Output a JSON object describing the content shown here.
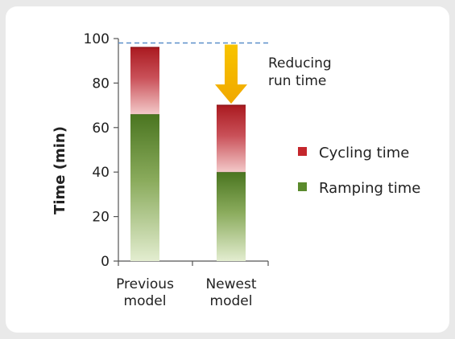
{
  "chart_data": {
    "type": "bar",
    "stacked": true,
    "ylabel": "Time (min)",
    "ylim": [
      0,
      100
    ],
    "yticks": [
      0,
      20,
      40,
      60,
      80,
      100
    ],
    "categories": [
      "Previous model",
      "Newest model"
    ],
    "category_lines": [
      [
        "Previous",
        "model"
      ],
      [
        "Newest",
        "model"
      ]
    ],
    "series": [
      {
        "name": "Ramping time",
        "values": [
          66,
          40
        ],
        "color": "#4e7a23"
      },
      {
        "name": "Cycling time",
        "values": [
          30,
          30
        ],
        "color": "#b01c22"
      }
    ],
    "reference_line": {
      "value": 98,
      "style": "dashed",
      "color": "#5b8fc9"
    },
    "annotation": {
      "lines": [
        "Reducing",
        "run time"
      ],
      "arrow_color": "#f5b800"
    },
    "legend": {
      "placement": "right",
      "items": [
        {
          "label": "Cycling time",
          "color": "#c4262c"
        },
        {
          "label": "Ramping time",
          "color": "#5a8a2c"
        }
      ]
    },
    "grid": false
  }
}
